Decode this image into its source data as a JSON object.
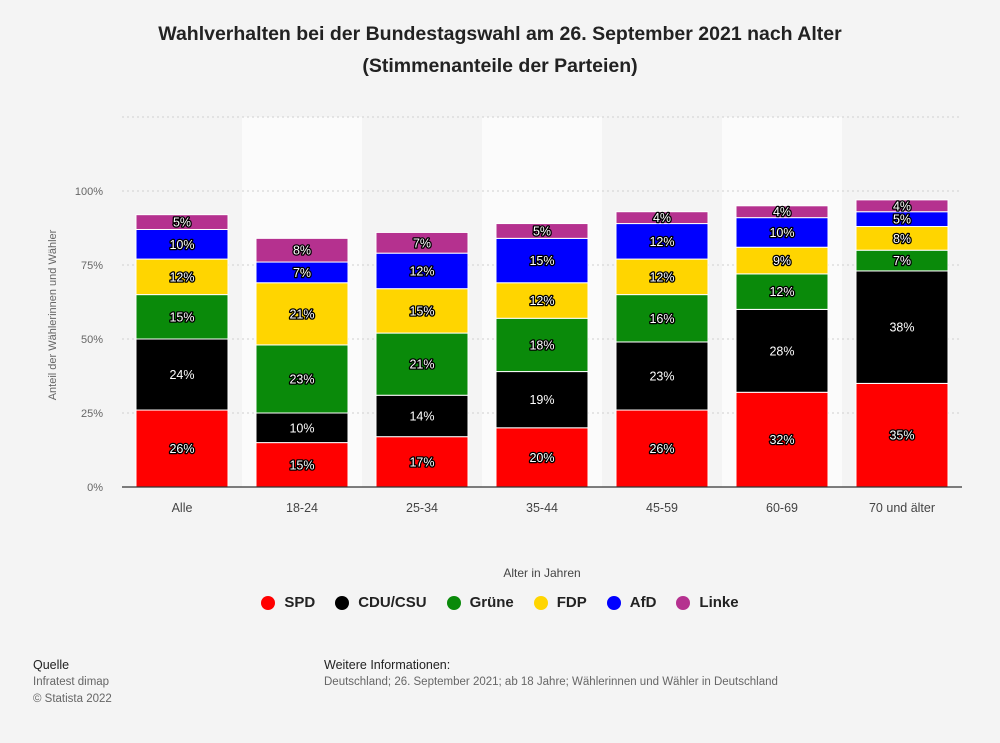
{
  "chart_data": {
    "type": "bar",
    "stacked": true,
    "title_lines": [
      "Wahlverhalten bei der Bundestagswahl am 26. September 2021 nach Alter",
      "(Stimmenanteile der Parteien)"
    ],
    "xlabel": "Alter in Jahren",
    "ylabel": "Anteil der Wählerinnen und Wähler",
    "ylim": [
      0,
      125
    ],
    "yticks": [
      0,
      25,
      50,
      75,
      100
    ],
    "ytick_labels": [
      "0%",
      "25%",
      "50%",
      "75%",
      "100%"
    ],
    "categories": [
      "Alle",
      "18-24",
      "25-34",
      "35-44",
      "45-59",
      "60-69",
      "70 und älter"
    ],
    "series": [
      {
        "name": "SPD",
        "color": "#ff0000",
        "values": [
          26,
          15,
          17,
          20,
          26,
          32,
          35
        ]
      },
      {
        "name": "CDU/CSU",
        "color": "#000000",
        "values": [
          24,
          10,
          14,
          19,
          23,
          28,
          38
        ]
      },
      {
        "name": "Grüne",
        "color": "#0a8a0a",
        "values": [
          15,
          23,
          21,
          18,
          16,
          12,
          7
        ]
      },
      {
        "name": "FDP",
        "color": "#ffd500",
        "values": [
          12,
          21,
          15,
          12,
          12,
          9,
          8
        ]
      },
      {
        "name": "AfD",
        "color": "#0000ff",
        "values": [
          10,
          7,
          12,
          15,
          12,
          10,
          5
        ]
      },
      {
        "name": "Linke",
        "color": "#b5318f",
        "values": [
          5,
          8,
          7,
          5,
          4,
          4,
          4
        ]
      }
    ],
    "value_suffix": "%",
    "legend": "bottom-center",
    "grid": true
  },
  "source": {
    "heading": "Quelle",
    "lines": [
      "Infratest dimap",
      "© Statista 2022"
    ]
  },
  "info": {
    "heading": "Weitere Informationen:",
    "text": "Deutschland; 26. September 2021; ab 18 Jahre; Wählerinnen und Wähler in Deutschland"
  }
}
